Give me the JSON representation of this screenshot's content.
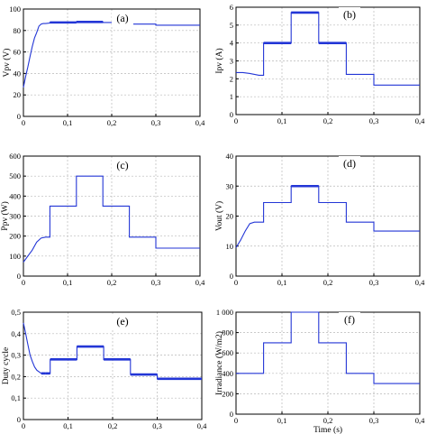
{
  "figure": {
    "line_color": "#2336d6",
    "grid_color": "#b9b9b9",
    "axis_color": "#000000"
  },
  "chart_data": [
    {
      "type": "line",
      "panel_label": "(a)",
      "ylabel": "Vpv (V)",
      "xlabel": "",
      "xlim": [
        0,
        0.4
      ],
      "ylim": [
        0,
        100
      ],
      "xticks": [
        0,
        0.1,
        0.2,
        0.3,
        0.4
      ],
      "xtick_labels": [
        "0",
        "0,1",
        "0,2",
        "0,3",
        "0,4"
      ],
      "yticks": [
        0,
        20,
        40,
        60,
        80,
        100
      ],
      "ytick_labels": [
        "0",
        "20",
        "40",
        "60",
        "80",
        "100"
      ],
      "grid": true,
      "x": [
        0,
        0.005,
        0.01,
        0.015,
        0.02,
        0.025,
        0.03,
        0.035,
        0.04,
        0.045,
        0.05,
        0.06,
        0.06,
        0.12,
        0.12,
        0.18,
        0.18,
        0.24,
        0.24,
        0.3,
        0.3,
        0.4
      ],
      "y": [
        27,
        37,
        46,
        56,
        65,
        73,
        78,
        84,
        86,
        86.5,
        86.5,
        87,
        87.5,
        87.5,
        88,
        88,
        87.5,
        87.5,
        86,
        86,
        85,
        85
      ],
      "thick_ranges": [
        [
          0.06,
          0.18
        ]
      ]
    },
    {
      "type": "line",
      "panel_label": "(b)",
      "ylabel": "Ipv (A)",
      "xlabel": "",
      "xlim": [
        0,
        0.4
      ],
      "ylim": [
        0,
        6
      ],
      "xticks": [
        0,
        0.1,
        0.2,
        0.3,
        0.4
      ],
      "xtick_labels": [
        "0",
        "0,1",
        "0,2",
        "0,3",
        "0,4"
      ],
      "yticks": [
        0,
        1,
        2,
        3,
        4,
        5,
        6
      ],
      "ytick_labels": [
        "0",
        "1",
        "2",
        "3",
        "4",
        "5",
        "6"
      ],
      "grid": true,
      "x": [
        0,
        0.015,
        0.03,
        0.05,
        0.06,
        0.06,
        0.12,
        0.12,
        0.18,
        0.18,
        0.24,
        0.24,
        0.3,
        0.3,
        0.4
      ],
      "y": [
        2.35,
        2.35,
        2.3,
        2.2,
        2.2,
        4.0,
        4.0,
        5.7,
        5.7,
        4.0,
        4.0,
        2.25,
        2.25,
        1.65,
        1.65
      ],
      "thick_ranges": [
        [
          0.06,
          0.24
        ]
      ]
    },
    {
      "type": "line",
      "panel_label": "(c)",
      "ylabel": "Ppv (W)",
      "xlabel": "",
      "xlim": [
        0,
        0.4
      ],
      "ylim": [
        0,
        600
      ],
      "xticks": [
        0,
        0.1,
        0.2,
        0.3,
        0.4
      ],
      "xtick_labels": [
        "0",
        "0,1",
        "0,2",
        "0,3",
        "0,4"
      ],
      "yticks": [
        0,
        100,
        200,
        300,
        400,
        500,
        600
      ],
      "ytick_labels": [
        "0",
        "100",
        "200",
        "300",
        "400",
        "500",
        "600"
      ],
      "grid": true,
      "x": [
        0,
        0.01,
        0.02,
        0.03,
        0.04,
        0.05,
        0.06,
        0.06,
        0.12,
        0.12,
        0.18,
        0.18,
        0.24,
        0.24,
        0.3,
        0.3,
        0.4
      ],
      "y": [
        70,
        100,
        130,
        170,
        190,
        195,
        195,
        350,
        350,
        500,
        500,
        350,
        350,
        195,
        195,
        140,
        140
      ],
      "thick_ranges": []
    },
    {
      "type": "line",
      "panel_label": "(d)",
      "ylabel": "Vout (V)",
      "xlabel": "",
      "xlim": [
        0,
        0.4
      ],
      "ylim": [
        0,
        40
      ],
      "xticks": [
        0,
        0.1,
        0.2,
        0.3,
        0.4
      ],
      "xtick_labels": [
        "0",
        "0,1",
        "0,2",
        "0,3",
        "0,4"
      ],
      "yticks": [
        0,
        10,
        20,
        30,
        40
      ],
      "ytick_labels": [
        "0",
        "10",
        "20",
        "30",
        "40"
      ],
      "grid": true,
      "x": [
        0,
        0.01,
        0.02,
        0.03,
        0.04,
        0.06,
        0.06,
        0.12,
        0.12,
        0.18,
        0.18,
        0.24,
        0.24,
        0.3,
        0.3,
        0.4
      ],
      "y": [
        9.5,
        12,
        15,
        17.5,
        18,
        18,
        24.5,
        24.5,
        30,
        30,
        24.5,
        24.5,
        18,
        18,
        15,
        15
      ],
      "thick_ranges": [
        [
          0.12,
          0.18
        ]
      ]
    },
    {
      "type": "line",
      "panel_label": "(e)",
      "ylabel": "Duty cycle",
      "xlabel": "",
      "xlim": [
        0,
        0.4
      ],
      "ylim": [
        0,
        0.5
      ],
      "xticks": [
        0,
        0.1,
        0.2,
        0.3,
        0.4
      ],
      "xtick_labels": [
        "0",
        "0,1",
        "0,2",
        "0,3",
        "0,4"
      ],
      "yticks": [
        0,
        0.1,
        0.2,
        0.3,
        0.4,
        0.5
      ],
      "ytick_labels": [
        "0",
        "0,1",
        "0,2",
        "0,3",
        "0,4",
        "0,5"
      ],
      "grid": true,
      "x": [
        0,
        0.005,
        0.01,
        0.015,
        0.02,
        0.025,
        0.03,
        0.04,
        0.05,
        0.06,
        0.06,
        0.12,
        0.12,
        0.18,
        0.18,
        0.24,
        0.24,
        0.3,
        0.3,
        0.4
      ],
      "y": [
        0.45,
        0.4,
        0.35,
        0.3,
        0.27,
        0.245,
        0.23,
        0.215,
        0.215,
        0.215,
        0.28,
        0.28,
        0.34,
        0.34,
        0.28,
        0.28,
        0.21,
        0.21,
        0.19,
        0.19
      ],
      "thick_ranges": [
        [
          0,
          0.4
        ]
      ]
    },
    {
      "type": "line",
      "panel_label": "(f)",
      "ylabel": "Irradiance (W/m2)",
      "xlabel": "Time (s)",
      "xlim": [
        0,
        0.4
      ],
      "ylim": [
        0,
        1000
      ],
      "xticks": [
        0,
        0.1,
        0.2,
        0.3,
        0.4
      ],
      "xtick_labels": [
        "0",
        "0,1",
        "0,2",
        "0,3",
        "0,4"
      ],
      "yticks": [
        0,
        200,
        400,
        600,
        800,
        1000
      ],
      "ytick_labels": [
        "0",
        "200",
        "400",
        "600",
        "800",
        "1 000"
      ],
      "grid": true,
      "x": [
        0,
        0.06,
        0.06,
        0.12,
        0.12,
        0.18,
        0.18,
        0.24,
        0.24,
        0.3,
        0.3,
        0.4
      ],
      "y": [
        400,
        400,
        700,
        700,
        1000,
        1000,
        700,
        700,
        400,
        400,
        300,
        300
      ],
      "thick_ranges": []
    }
  ]
}
